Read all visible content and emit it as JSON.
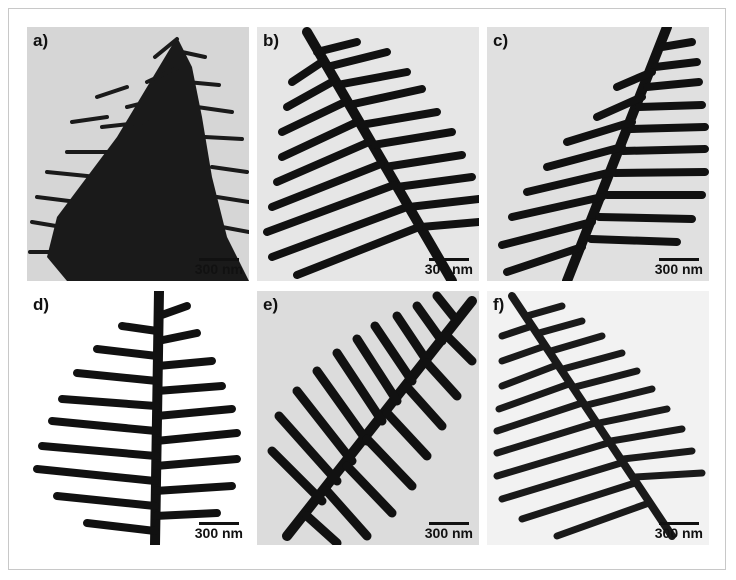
{
  "panels": [
    {
      "label": "a)",
      "scale": "300 nm"
    },
    {
      "label": "b)",
      "scale": "300 nm"
    },
    {
      "label": "c)",
      "scale": "300 nm"
    },
    {
      "label": "d)",
      "scale": "300 nm"
    },
    {
      "label": "e)",
      "scale": "300 nm"
    },
    {
      "label": "f)",
      "scale": "300 nm"
    }
  ]
}
